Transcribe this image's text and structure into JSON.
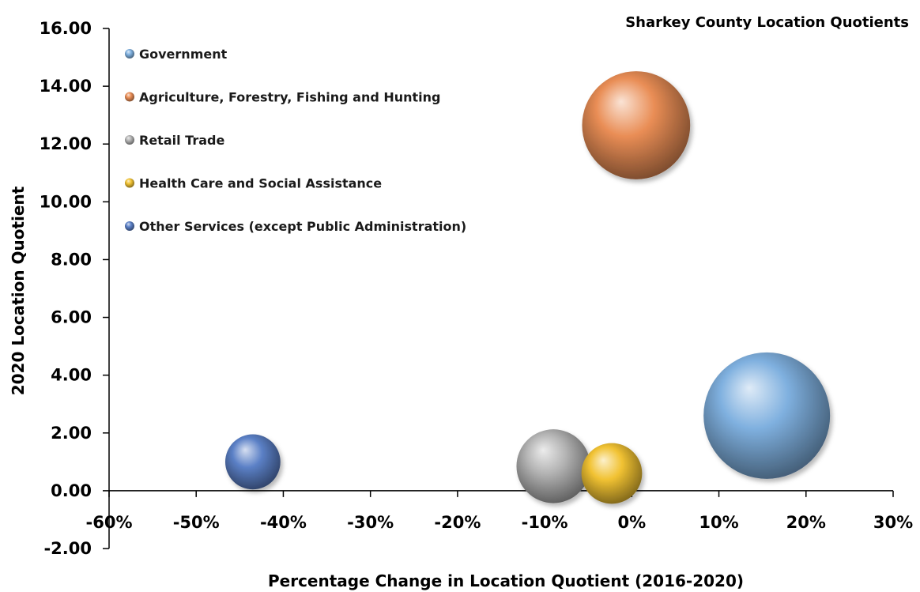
{
  "chart_data": {
    "type": "bubble",
    "title": "Sharkey County Location Quotients",
    "xlabel": "Percentage Change in Location Quotient (2016-2020)",
    "ylabel": "2020 Location Quotient",
    "xlim": [
      -0.6,
      0.3
    ],
    "ylim": [
      -2,
      16
    ],
    "x_ticks": [
      "-60%",
      "-50%",
      "-40%",
      "-30%",
      "-20%",
      "-10%",
      "0%",
      "10%",
      "20%",
      "30%"
    ],
    "y_ticks": [
      "-2.00",
      "0.00",
      "2.00",
      "4.00",
      "6.00",
      "8.00",
      "10.00",
      "12.00",
      "14.00",
      "16.00"
    ],
    "legend_position": "top-left",
    "grid": false,
    "series": [
      {
        "name": "Government",
        "x": 0.155,
        "y": 2.6,
        "size": 1.0,
        "color": "#7fb0df"
      },
      {
        "name": "Agriculture, Forestry, Fishing and Hunting",
        "x": 0.005,
        "y": 12.65,
        "size": 0.73,
        "color": "#e98d55"
      },
      {
        "name": "Retail Trade",
        "x": -0.09,
        "y": 0.85,
        "size": 0.34,
        "color": "#b3b3b3"
      },
      {
        "name": "Health Care and Social Assistance",
        "x": -0.023,
        "y": 0.6,
        "size": 0.23,
        "color": "#f1c232"
      },
      {
        "name": "Other Services (except Public Administration)",
        "x": -0.435,
        "y": 1.0,
        "size": 0.19,
        "color": "#5b80c6"
      }
    ]
  }
}
